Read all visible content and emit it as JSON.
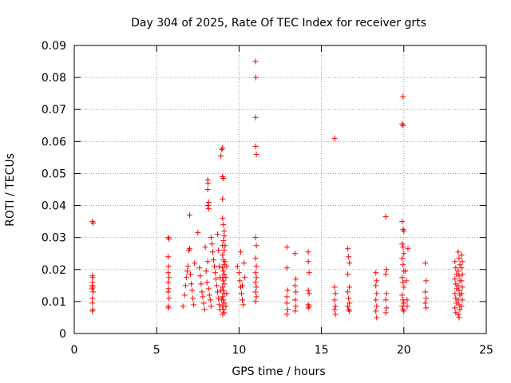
{
  "chart_data": {
    "type": "scatter",
    "title": "Day 304 of 2025, Rate Of TEC Index for receiver grts",
    "xlabel": "GPS time / hours",
    "ylabel": "ROTI / TECUs",
    "xlim": [
      0,
      25
    ],
    "ylim": [
      0,
      0.09
    ],
    "xticks": [
      0,
      5,
      10,
      15,
      20,
      25
    ],
    "xtick_labels": [
      "0",
      "5",
      "10",
      "15",
      "20",
      "25"
    ],
    "yticks": [
      0,
      0.01,
      0.02,
      0.03,
      0.04,
      0.05,
      0.06,
      0.07,
      0.08,
      0.09
    ],
    "ytick_labels": [
      "0",
      "0.01",
      "0.02",
      "0.03",
      "0.04",
      "0.05",
      "0.06",
      "0.07",
      "0.08",
      "0.09"
    ],
    "grid": true,
    "marker": "+",
    "series": [
      {
        "name": "ROTI",
        "color": "#ff0000",
        "points": [
          [
            1.1,
            0.035
          ],
          [
            1.15,
            0.0345
          ],
          [
            1.1,
            0.018
          ],
          [
            1.12,
            0.0175
          ],
          [
            1.1,
            0.016
          ],
          [
            1.1,
            0.015
          ],
          [
            1.12,
            0.0145
          ],
          [
            1.08,
            0.014
          ],
          [
            1.15,
            0.013
          ],
          [
            1.1,
            0.011
          ],
          [
            1.1,
            0.0095
          ],
          [
            1.12,
            0.0075
          ],
          [
            1.1,
            0.007
          ],
          [
            5.7,
            0.03
          ],
          [
            5.75,
            0.0295
          ],
          [
            5.7,
            0.024
          ],
          [
            5.72,
            0.021
          ],
          [
            5.7,
            0.019
          ],
          [
            5.75,
            0.0175
          ],
          [
            5.7,
            0.016
          ],
          [
            5.72,
            0.014
          ],
          [
            5.7,
            0.013
          ],
          [
            5.75,
            0.011
          ],
          [
            5.7,
            0.0085
          ],
          [
            5.72,
            0.008
          ],
          [
            6.6,
            0.0085
          ],
          [
            6.7,
            0.012
          ],
          [
            6.75,
            0.015
          ],
          [
            6.8,
            0.0175
          ],
          [
            6.85,
            0.0195
          ],
          [
            6.9,
            0.021
          ],
          [
            6.95,
            0.026
          ],
          [
            7.0,
            0.0265
          ],
          [
            7.0,
            0.037
          ],
          [
            7.05,
            0.0185
          ],
          [
            7.1,
            0.0155
          ],
          [
            7.15,
            0.0135
          ],
          [
            7.2,
            0.011
          ],
          [
            7.25,
            0.009
          ],
          [
            7.3,
            0.022
          ],
          [
            7.5,
            0.0315
          ],
          [
            7.6,
            0.0205
          ],
          [
            7.65,
            0.018
          ],
          [
            7.7,
            0.0155
          ],
          [
            7.75,
            0.013
          ],
          [
            7.8,
            0.0115
          ],
          [
            7.85,
            0.0095
          ],
          [
            7.9,
            0.0075
          ],
          [
            7.95,
            0.027
          ],
          [
            8.0,
            0.0195
          ],
          [
            8.05,
            0.016
          ],
          [
            8.1,
            0.0225
          ],
          [
            8.15,
            0.014
          ],
          [
            8.2,
            0.012
          ],
          [
            8.25,
            0.0105
          ],
          [
            8.3,
            0.0085
          ],
          [
            8.1,
            0.048
          ],
          [
            8.12,
            0.047
          ],
          [
            8.1,
            0.045
          ],
          [
            8.15,
            0.041
          ],
          [
            8.1,
            0.04
          ],
          [
            8.15,
            0.039
          ],
          [
            8.3,
            0.03
          ],
          [
            8.35,
            0.028
          ],
          [
            8.4,
            0.0255
          ],
          [
            8.45,
            0.023
          ],
          [
            8.5,
            0.021
          ],
          [
            8.55,
            0.019
          ],
          [
            8.6,
            0.017
          ],
          [
            8.65,
            0.015
          ],
          [
            8.7,
            0.013
          ],
          [
            8.75,
            0.011
          ],
          [
            8.8,
            0.009
          ],
          [
            8.85,
            0.0075
          ],
          [
            8.7,
            0.031
          ],
          [
            8.75,
            0.026
          ],
          [
            8.8,
            0.021
          ],
          [
            8.85,
            0.0175
          ],
          [
            8.9,
            0.0135
          ],
          [
            8.95,
            0.0105
          ],
          [
            8.9,
            0.0555
          ],
          [
            8.95,
            0.0575
          ],
          [
            9.0,
            0.058
          ],
          [
            9.0,
            0.049
          ],
          [
            9.05,
            0.0485
          ],
          [
            9.0,
            0.042
          ],
          [
            9.0,
            0.036
          ],
          [
            9.05,
            0.034
          ],
          [
            9.1,
            0.032
          ],
          [
            9.1,
            0.0305
          ],
          [
            9.05,
            0.029
          ],
          [
            9.0,
            0.0275
          ],
          [
            9.1,
            0.026
          ],
          [
            9.0,
            0.0245
          ],
          [
            9.05,
            0.023
          ],
          [
            9.1,
            0.0215
          ],
          [
            9.0,
            0.0205
          ],
          [
            9.05,
            0.0195
          ],
          [
            9.1,
            0.0185
          ],
          [
            9.0,
            0.0175
          ],
          [
            9.05,
            0.0165
          ],
          [
            9.1,
            0.0155
          ],
          [
            9.0,
            0.0145
          ],
          [
            9.05,
            0.0135
          ],
          [
            9.1,
            0.0125
          ],
          [
            9.0,
            0.0115
          ],
          [
            9.05,
            0.0105
          ],
          [
            9.1,
            0.0095
          ],
          [
            9.0,
            0.0085
          ],
          [
            9.05,
            0.0075
          ],
          [
            9.1,
            0.0065
          ],
          [
            9.0,
            0.006
          ],
          [
            9.15,
            0.0225
          ],
          [
            9.2,
            0.0175
          ],
          [
            9.25,
            0.0125
          ],
          [
            9.2,
            0.0085
          ],
          [
            9.15,
            0.0275
          ],
          [
            9.25,
            0.021
          ],
          [
            9.9,
            0.021
          ],
          [
            10.0,
            0.019
          ],
          [
            10.05,
            0.0165
          ],
          [
            10.1,
            0.0145
          ],
          [
            10.15,
            0.0125
          ],
          [
            10.2,
            0.0105
          ],
          [
            10.25,
            0.009
          ],
          [
            10.1,
            0.0255
          ],
          [
            10.3,
            0.022
          ],
          [
            10.35,
            0.0175
          ],
          [
            10.2,
            0.015
          ],
          [
            11.0,
            0.085
          ],
          [
            11.02,
            0.08
          ],
          [
            11.0,
            0.0675
          ],
          [
            11.0,
            0.0585
          ],
          [
            11.05,
            0.056
          ],
          [
            11.0,
            0.03
          ],
          [
            11.05,
            0.0275
          ],
          [
            11.0,
            0.0235
          ],
          [
            11.05,
            0.021
          ],
          [
            11.0,
            0.019
          ],
          [
            11.05,
            0.0175
          ],
          [
            11.0,
            0.016
          ],
          [
            11.05,
            0.0145
          ],
          [
            11.0,
            0.013
          ],
          [
            11.05,
            0.0115
          ],
          [
            11.0,
            0.01
          ],
          [
            12.9,
            0.027
          ],
          [
            12.9,
            0.0205
          ],
          [
            12.95,
            0.0135
          ],
          [
            12.9,
            0.0115
          ],
          [
            12.9,
            0.0095
          ],
          [
            12.95,
            0.0075
          ],
          [
            12.9,
            0.006
          ],
          [
            13.4,
            0.025
          ],
          [
            13.45,
            0.017
          ],
          [
            13.4,
            0.015
          ],
          [
            13.45,
            0.013
          ],
          [
            13.4,
            0.0105
          ],
          [
            13.45,
            0.0085
          ],
          [
            13.4,
            0.007
          ],
          [
            14.2,
            0.0255
          ],
          [
            14.2,
            0.0225
          ],
          [
            14.25,
            0.019
          ],
          [
            14.2,
            0.0135
          ],
          [
            14.25,
            0.0125
          ],
          [
            14.2,
            0.009
          ],
          [
            14.25,
            0.0085
          ],
          [
            14.2,
            0.008
          ],
          [
            15.8,
            0.061
          ],
          [
            15.8,
            0.0145
          ],
          [
            15.85,
            0.0125
          ],
          [
            15.8,
            0.0105
          ],
          [
            15.85,
            0.0085
          ],
          [
            15.8,
            0.0075
          ],
          [
            15.85,
            0.006
          ],
          [
            16.6,
            0.0265
          ],
          [
            16.65,
            0.024
          ],
          [
            16.7,
            0.022
          ],
          [
            16.6,
            0.0185
          ],
          [
            16.7,
            0.0145
          ],
          [
            16.6,
            0.013
          ],
          [
            16.65,
            0.011
          ],
          [
            16.7,
            0.0095
          ],
          [
            16.6,
            0.0085
          ],
          [
            16.65,
            0.0075
          ],
          [
            16.7,
            0.007
          ],
          [
            18.3,
            0.019
          ],
          [
            18.35,
            0.0165
          ],
          [
            18.3,
            0.015
          ],
          [
            18.35,
            0.0125
          ],
          [
            18.3,
            0.0105
          ],
          [
            18.35,
            0.0085
          ],
          [
            18.3,
            0.007
          ],
          [
            18.35,
            0.005
          ],
          [
            18.9,
            0.0365
          ],
          [
            18.95,
            0.02
          ],
          [
            18.9,
            0.0185
          ],
          [
            18.95,
            0.0125
          ],
          [
            18.9,
            0.0105
          ],
          [
            18.95,
            0.008
          ],
          [
            18.9,
            0.0065
          ],
          [
            19.9,
            0.0655
          ],
          [
            19.95,
            0.065
          ],
          [
            19.95,
            0.074
          ],
          [
            19.9,
            0.035
          ],
          [
            19.95,
            0.0325
          ],
          [
            20.0,
            0.032
          ],
          [
            19.9,
            0.028
          ],
          [
            19.95,
            0.027
          ],
          [
            20.0,
            0.025
          ],
          [
            19.9,
            0.0235
          ],
          [
            19.95,
            0.0215
          ],
          [
            20.0,
            0.0195
          ],
          [
            19.9,
            0.0175
          ],
          [
            19.95,
            0.016
          ],
          [
            20.0,
            0.0145
          ],
          [
            19.9,
            0.012
          ],
          [
            19.95,
            0.0105
          ],
          [
            20.0,
            0.0095
          ],
          [
            19.9,
            0.0085
          ],
          [
            19.95,
            0.0075
          ],
          [
            20.0,
            0.007
          ],
          [
            20.1,
            0.0195
          ],
          [
            20.15,
            0.0165
          ],
          [
            20.2,
            0.0105
          ],
          [
            20.25,
            0.0265
          ],
          [
            20.2,
            0.0085
          ],
          [
            21.3,
            0.022
          ],
          [
            21.35,
            0.0165
          ],
          [
            21.3,
            0.013
          ],
          [
            21.35,
            0.011
          ],
          [
            21.3,
            0.0095
          ],
          [
            21.35,
            0.008
          ],
          [
            23.1,
            0.0225
          ],
          [
            23.15,
            0.0205
          ],
          [
            23.2,
            0.0185
          ],
          [
            23.1,
            0.017
          ],
          [
            23.15,
            0.0155
          ],
          [
            23.2,
            0.014
          ],
          [
            23.1,
            0.0125
          ],
          [
            23.15,
            0.011
          ],
          [
            23.2,
            0.0095
          ],
          [
            23.1,
            0.008
          ],
          [
            23.15,
            0.0065
          ],
          [
            23.3,
            0.0255
          ],
          [
            23.35,
            0.0235
          ],
          [
            23.4,
            0.0215
          ],
          [
            23.3,
            0.0195
          ],
          [
            23.35,
            0.018
          ],
          [
            23.4,
            0.0165
          ],
          [
            23.3,
            0.015
          ],
          [
            23.35,
            0.0135
          ],
          [
            23.4,
            0.012
          ],
          [
            23.3,
            0.0105
          ],
          [
            23.35,
            0.009
          ],
          [
            23.4,
            0.0075
          ],
          [
            23.3,
            0.006
          ],
          [
            23.35,
            0.005
          ],
          [
            23.5,
            0.0245
          ],
          [
            23.55,
            0.0225
          ],
          [
            23.5,
            0.0205
          ],
          [
            23.55,
            0.0185
          ],
          [
            23.5,
            0.0165
          ],
          [
            23.55,
            0.0145
          ],
          [
            23.5,
            0.0125
          ],
          [
            23.55,
            0.0105
          ],
          [
            23.5,
            0.0085
          ]
        ]
      }
    ]
  }
}
